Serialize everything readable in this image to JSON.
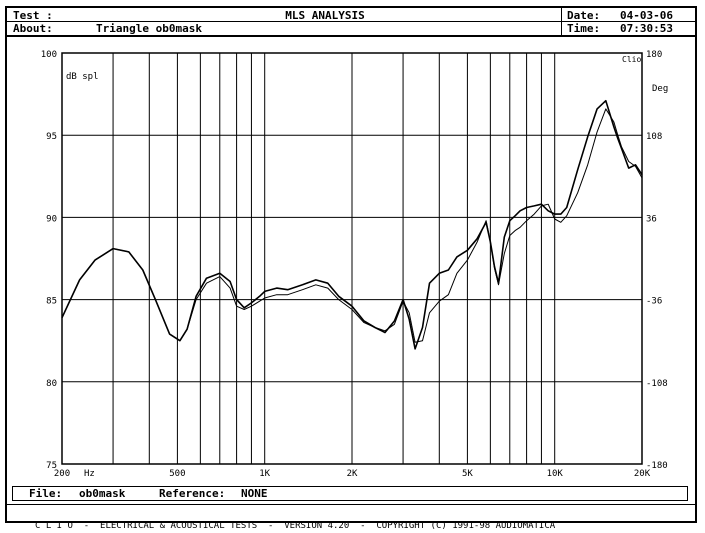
{
  "header": {
    "test_label": "Test :",
    "title": "MLS ANALYSIS",
    "date_label": "Date:",
    "date_value": "04-03-06",
    "about_label": "About:",
    "about_value": "Triangle ob0mask",
    "time_label": "Time:",
    "time_value": "07:30:53"
  },
  "file_bar": {
    "file_label": "File:",
    "file_value": "ob0mask",
    "reference_label": "Reference:",
    "reference_value": "NONE"
  },
  "footer": {
    "text": "C L I O  -  ELECTRICAL & ACOUSTICAL TESTS  -  VERSION 4.20  -  COPYRIGHT (C) 1991-98 AUDIOMATICA"
  },
  "chart_data": {
    "type": "line",
    "xscale": "log",
    "xlim": [
      200,
      20000
    ],
    "ylim": [
      75,
      100
    ],
    "y2lim": [
      -180,
      180
    ],
    "ylabel": "dB spl",
    "y2label": "Deg",
    "corner_label": "Clio",
    "x_unit_label": "Hz",
    "y_ticks": [
      {
        "v": 100,
        "label": "100"
      },
      {
        "v": 95,
        "label": "95"
      },
      {
        "v": 90,
        "label": "90"
      },
      {
        "v": 85,
        "label": "85"
      },
      {
        "v": 80,
        "label": "80"
      },
      {
        "v": 75,
        "label": "75"
      }
    ],
    "y2_ticks": [
      {
        "v": 180,
        "label": "180"
      },
      {
        "v": 108,
        "label": "108"
      },
      {
        "v": 36,
        "label": "36"
      },
      {
        "v": -36,
        "label": "-36"
      },
      {
        "v": -108,
        "label": "-108"
      },
      {
        "v": -180,
        "label": "-180"
      }
    ],
    "x_tick_labels": [
      {
        "v": 200,
        "label": "200"
      },
      {
        "v": 500,
        "label": "500"
      },
      {
        "v": 1000,
        "label": "1K"
      },
      {
        "v": 2000,
        "label": "2K"
      },
      {
        "v": 5000,
        "label": "5K"
      },
      {
        "v": 10000,
        "label": "10K"
      },
      {
        "v": 20000,
        "label": "20K"
      }
    ],
    "x_gridlines": [
      300,
      400,
      500,
      600,
      700,
      800,
      900,
      1000,
      2000,
      3000,
      4000,
      5000,
      6000,
      7000,
      8000,
      9000,
      10000
    ],
    "grid": true,
    "series": [
      {
        "x": [
          200,
          230,
          260,
          300,
          340,
          380,
          420,
          470,
          510,
          540,
          580,
          630,
          700,
          760,
          800,
          850,
          900,
          960,
          1000,
          1100,
          1200,
          1350,
          1500,
          1650,
          1800,
          2000,
          2200,
          2400,
          2600,
          2800,
          3000,
          3150,
          3300,
          3500,
          3700,
          4000,
          4300,
          4600,
          5000,
          5400,
          5800,
          6000,
          6200,
          6400,
          6700,
          7000,
          7300,
          7600,
          8000,
          8500,
          9000,
          9500,
          10000,
          10500,
          11000,
          12000,
          13000,
          14000,
          15000,
          16000,
          16500,
          17000,
          18000,
          19000,
          20000
        ],
        "y": [
          83.9,
          86.2,
          87.4,
          88.1,
          87.9,
          86.8,
          85.0,
          82.9,
          82.5,
          83.2,
          85.2,
          86.3,
          86.6,
          86.1,
          85.0,
          84.5,
          84.8,
          85.2,
          85.5,
          85.7,
          85.6,
          85.9,
          86.2,
          86.0,
          85.2,
          84.6,
          83.7,
          83.3,
          83.0,
          83.7,
          85.0,
          83.8,
          82.0,
          83.3,
          86.0,
          86.6,
          86.8,
          87.6,
          88.0,
          88.7,
          89.7,
          88.5,
          87.0,
          86.0,
          88.8,
          89.8,
          90.1,
          90.4,
          90.6,
          90.7,
          90.8,
          90.4,
          90.2,
          90.2,
          90.6,
          92.9,
          94.9,
          96.6,
          97.1,
          95.5,
          94.8,
          94.2,
          93.0,
          93.2,
          92.6
        ]
      },
      {
        "x": [
          200,
          230,
          260,
          300,
          340,
          380,
          420,
          470,
          510,
          540,
          580,
          630,
          700,
          760,
          800,
          850,
          900,
          960,
          1000,
          1100,
          1200,
          1350,
          1500,
          1650,
          1800,
          2000,
          2200,
          2400,
          2600,
          2800,
          3000,
          3150,
          3300,
          3500,
          3700,
          4000,
          4300,
          4600,
          5000,
          5400,
          5800,
          6000,
          6200,
          6400,
          6700,
          7000,
          7300,
          7600,
          8000,
          8500,
          9000,
          9500,
          10000,
          10500,
          11000,
          12000,
          13000,
          14000,
          15000,
          16000,
          16500,
          17000,
          18000,
          19000,
          20000
        ],
        "y": [
          83.9,
          86.2,
          87.4,
          88.1,
          87.9,
          86.8,
          85.0,
          82.9,
          82.5,
          83.2,
          85.0,
          86.0,
          86.4,
          85.7,
          84.6,
          84.4,
          84.6,
          84.9,
          85.1,
          85.3,
          85.3,
          85.6,
          85.9,
          85.7,
          85.0,
          84.4,
          83.6,
          83.3,
          83.1,
          83.5,
          84.9,
          84.2,
          82.4,
          82.5,
          84.2,
          84.9,
          85.3,
          86.6,
          87.4,
          88.5,
          89.8,
          88.5,
          86.9,
          85.9,
          87.8,
          88.9,
          89.2,
          89.4,
          89.8,
          90.2,
          90.7,
          90.8,
          89.9,
          89.7,
          90.1,
          91.5,
          93.2,
          95.2,
          96.6,
          95.8,
          95.0,
          94.3,
          93.4,
          93.1,
          92.4
        ]
      }
    ]
  }
}
